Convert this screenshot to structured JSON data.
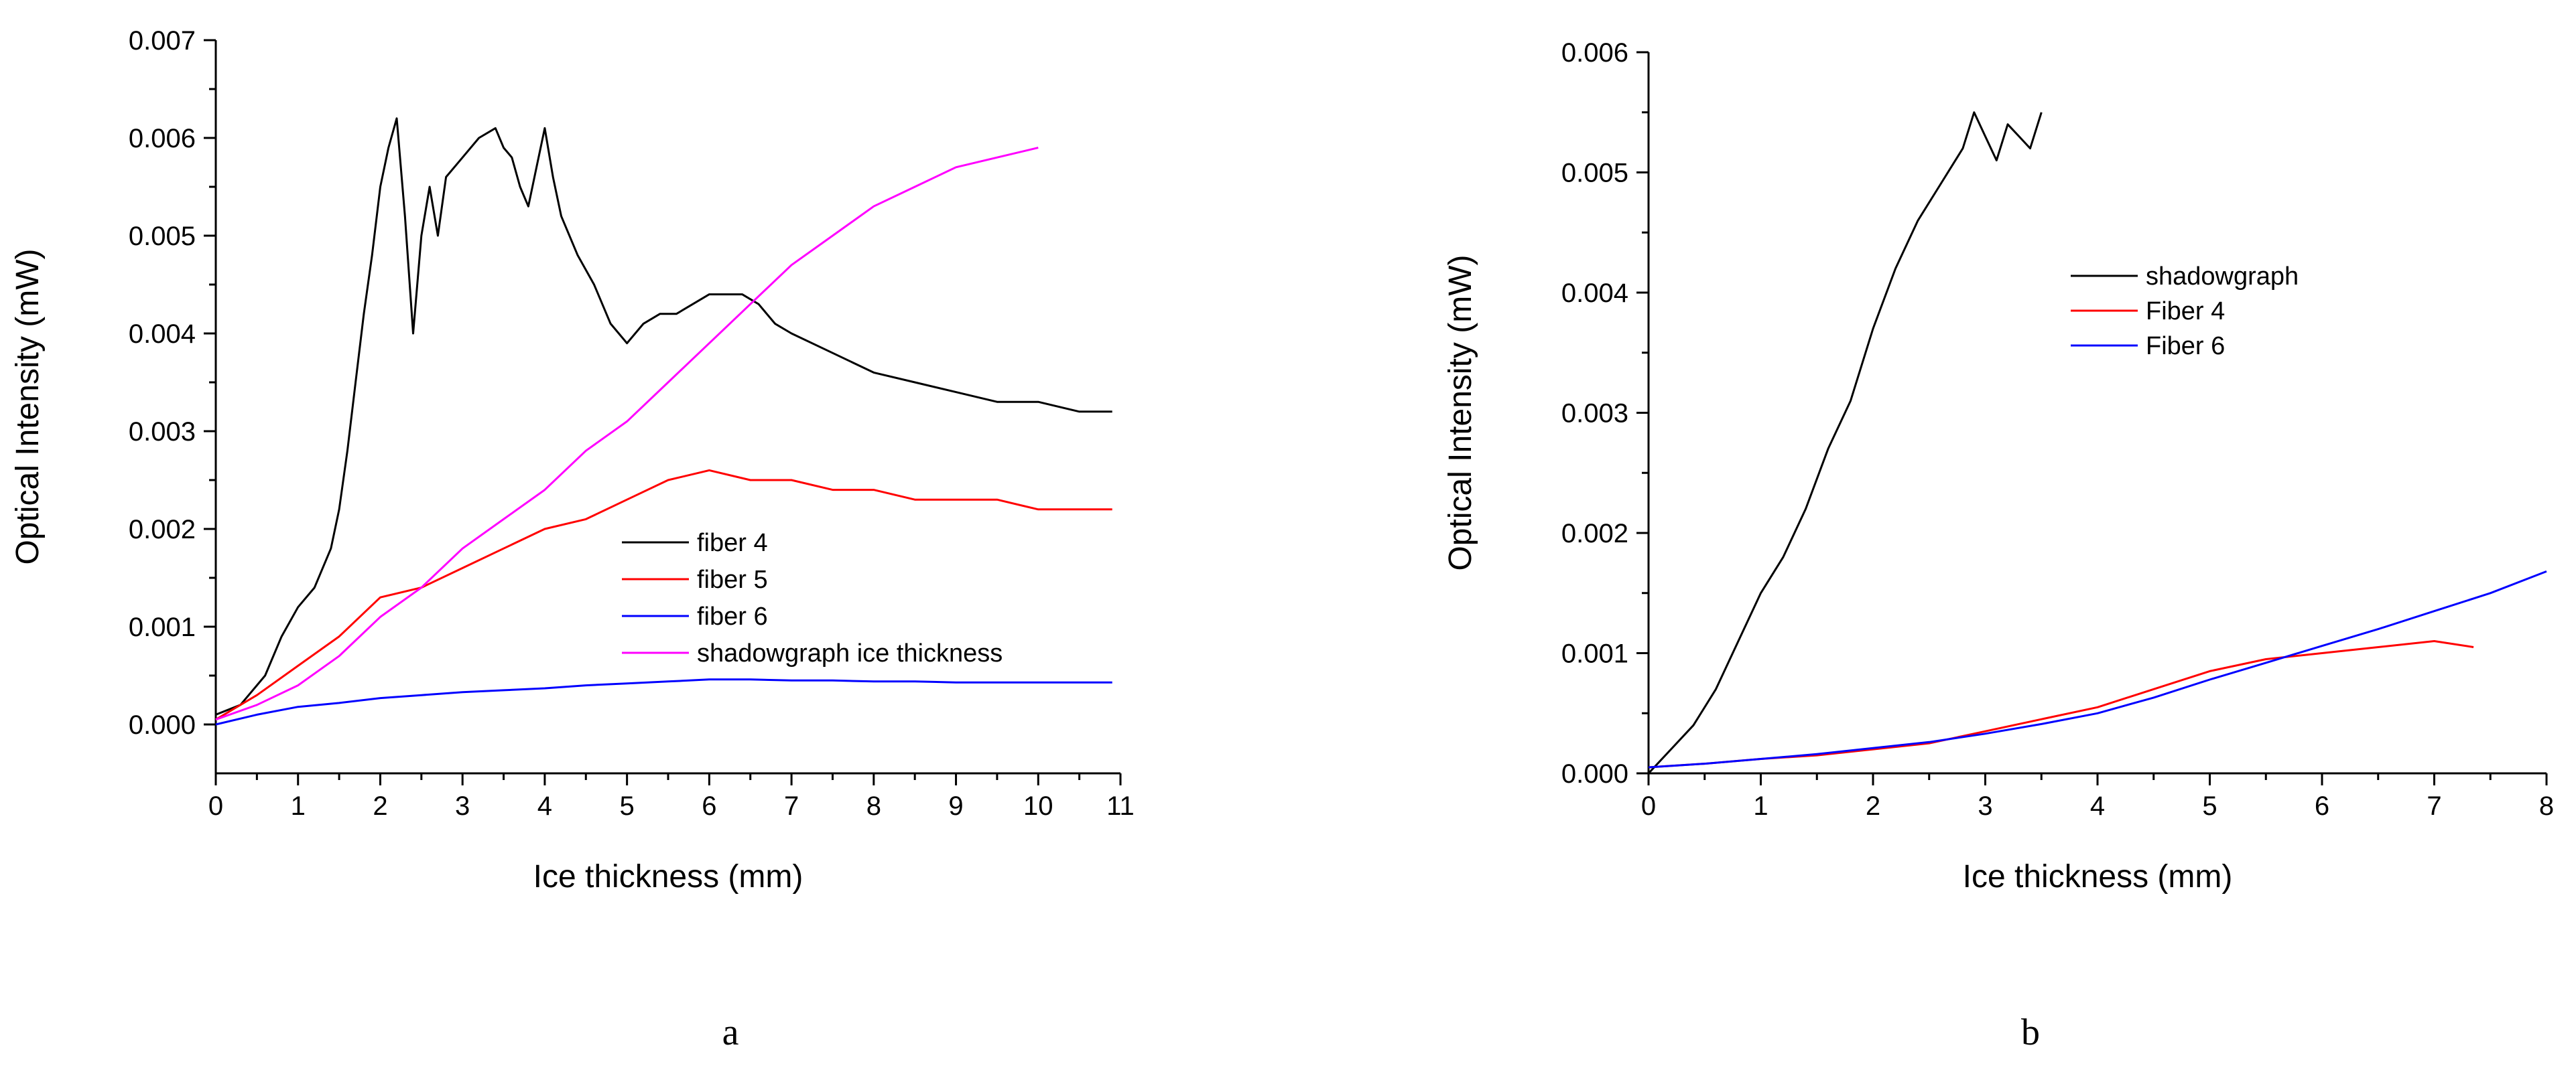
{
  "chart_data": [
    {
      "type": "line",
      "panel_label": "a",
      "title": "",
      "xlabel": "Ice thickness (mm)",
      "ylabel": "Optical Intensity (mW)",
      "xlim": [
        0,
        11
      ],
      "ylim": [
        -0.0005,
        0.007
      ],
      "xticks": [
        0,
        1,
        2,
        3,
        4,
        5,
        6,
        7,
        8,
        9,
        10,
        11
      ],
      "yticks": [
        "0.000",
        "0.001",
        "0.002",
        "0.003",
        "0.004",
        "0.005",
        "0.006",
        "0.007"
      ],
      "legend_position": "center-right",
      "series": [
        {
          "name": "fiber 4",
          "color": "#000000",
          "x": [
            0,
            0.3,
            0.6,
            0.8,
            1.0,
            1.2,
            1.4,
            1.5,
            1.6,
            1.7,
            1.8,
            1.9,
            2.0,
            2.1,
            2.2,
            2.3,
            2.4,
            2.5,
            2.6,
            2.7,
            2.8,
            3.0,
            3.2,
            3.4,
            3.5,
            3.6,
            3.7,
            3.8,
            3.9,
            4.0,
            4.1,
            4.2,
            4.4,
            4.6,
            4.8,
            5.0,
            5.2,
            5.4,
            5.6,
            5.8,
            6.0,
            6.2,
            6.4,
            6.6,
            6.8,
            7.0,
            7.5,
            8.0,
            8.5,
            9.0,
            9.5,
            10.0,
            10.5,
            10.9
          ],
          "y": [
            0.0001,
            0.0002,
            0.0005,
            0.0009,
            0.0012,
            0.0014,
            0.0018,
            0.0022,
            0.0028,
            0.0035,
            0.0042,
            0.0048,
            0.0055,
            0.0059,
            0.0062,
            0.0052,
            0.004,
            0.005,
            0.0055,
            0.005,
            0.0056,
            0.0058,
            0.006,
            0.0061,
            0.0059,
            0.0058,
            0.0055,
            0.0053,
            0.0057,
            0.0061,
            0.0056,
            0.0052,
            0.0048,
            0.0045,
            0.0041,
            0.0039,
            0.0041,
            0.0042,
            0.0042,
            0.0043,
            0.0044,
            0.0044,
            0.0044,
            0.0043,
            0.0041,
            0.004,
            0.0038,
            0.0036,
            0.0035,
            0.0034,
            0.0033,
            0.0033,
            0.0032,
            0.0032
          ]
        },
        {
          "name": "fiber 5",
          "color": "#ff0000",
          "x": [
            0,
            0.5,
            1.0,
            1.5,
            2.0,
            2.5,
            3.0,
            3.5,
            4.0,
            4.5,
            5.0,
            5.5,
            6.0,
            6.5,
            7.0,
            7.5,
            8.0,
            8.5,
            9.0,
            9.5,
            10.0,
            10.5,
            10.9
          ],
          "y": [
            5e-05,
            0.0003,
            0.0006,
            0.0009,
            0.0013,
            0.0014,
            0.0016,
            0.0018,
            0.002,
            0.0021,
            0.0023,
            0.0025,
            0.0026,
            0.0025,
            0.0025,
            0.0024,
            0.0024,
            0.0023,
            0.0023,
            0.0023,
            0.0022,
            0.0022,
            0.0022
          ]
        },
        {
          "name": "fiber 6",
          "color": "#0000ff",
          "x": [
            0,
            0.5,
            1.0,
            1.5,
            2.0,
            2.5,
            3.0,
            3.5,
            4.0,
            4.5,
            5.0,
            5.5,
            6.0,
            6.5,
            7.0,
            7.5,
            8.0,
            8.5,
            9.0,
            9.5,
            10.0,
            10.5,
            10.9
          ],
          "y": [
            0.0,
            0.0001,
            0.00018,
            0.00022,
            0.00027,
            0.0003,
            0.00033,
            0.00035,
            0.00037,
            0.0004,
            0.00042,
            0.00044,
            0.00046,
            0.00046,
            0.00045,
            0.00045,
            0.00044,
            0.00044,
            0.00043,
            0.00043,
            0.00043,
            0.00043,
            0.00043
          ]
        },
        {
          "name": "shadowgraph ice thickness",
          "color": "#ff00ff",
          "x": [
            0,
            0.5,
            1.0,
            1.5,
            2.0,
            2.5,
            3.0,
            3.5,
            4.0,
            4.5,
            5.0,
            5.5,
            6.0,
            6.5,
            7.0,
            7.5,
            8.0,
            8.5,
            9.0,
            9.5,
            10.0
          ],
          "y": [
            5e-05,
            0.0002,
            0.0004,
            0.0007,
            0.0011,
            0.0014,
            0.0018,
            0.0021,
            0.0024,
            0.0028,
            0.0031,
            0.0035,
            0.0039,
            0.0043,
            0.0047,
            0.005,
            0.0053,
            0.0055,
            0.0057,
            0.0058,
            0.0059
          ]
        }
      ]
    },
    {
      "type": "line",
      "panel_label": "b",
      "title": "",
      "xlabel": "Ice thickness (mm)",
      "ylabel": "Optical Intensity (mW)",
      "xlim": [
        0,
        8
      ],
      "ylim": [
        0,
        0.006
      ],
      "xticks": [
        0,
        1,
        2,
        3,
        4,
        5,
        6,
        7,
        8
      ],
      "yticks": [
        "0.000",
        "0.001",
        "0.002",
        "0.003",
        "0.004",
        "0.005",
        "0.006"
      ],
      "legend_position": "upper-center",
      "series": [
        {
          "name": "shadowgraph",
          "color": "#000000",
          "x": [
            0,
            0.2,
            0.4,
            0.6,
            0.8,
            1.0,
            1.2,
            1.4,
            1.6,
            1.8,
            2.0,
            2.2,
            2.4,
            2.6,
            2.8,
            2.9,
            3.0,
            3.1,
            3.2,
            3.3,
            3.4,
            3.5
          ],
          "y": [
            0.0,
            0.0002,
            0.0004,
            0.0007,
            0.0011,
            0.0015,
            0.0018,
            0.0022,
            0.0027,
            0.0031,
            0.0037,
            0.0042,
            0.0046,
            0.0049,
            0.0052,
            0.0055,
            0.0053,
            0.0051,
            0.0054,
            0.0053,
            0.0052,
            0.0055
          ]
        },
        {
          "name": "Fiber 4",
          "color": "#ff0000",
          "x": [
            0,
            0.5,
            1.0,
            1.5,
            2.0,
            2.5,
            3.0,
            3.5,
            4.0,
            4.5,
            5.0,
            5.5,
            6.0,
            6.5,
            7.0,
            7.35
          ],
          "y": [
            5e-05,
            8e-05,
            0.00012,
            0.00015,
            0.0002,
            0.00025,
            0.00035,
            0.00045,
            0.00055,
            0.0007,
            0.00085,
            0.00095,
            0.001,
            0.00105,
            0.0011,
            0.00105
          ]
        },
        {
          "name": "Fiber 6",
          "color": "#0000ff",
          "x": [
            0,
            0.5,
            1.0,
            1.5,
            2.0,
            2.5,
            3.0,
            3.5,
            4.0,
            4.5,
            5.0,
            5.5,
            6.0,
            6.5,
            7.0,
            7.5,
            8.0
          ],
          "y": [
            5e-05,
            8e-05,
            0.00012,
            0.00016,
            0.00021,
            0.00026,
            0.00033,
            0.00041,
            0.0005,
            0.00063,
            0.00078,
            0.00092,
            0.00106,
            0.0012,
            0.00135,
            0.0015,
            0.00168
          ]
        }
      ]
    }
  ]
}
